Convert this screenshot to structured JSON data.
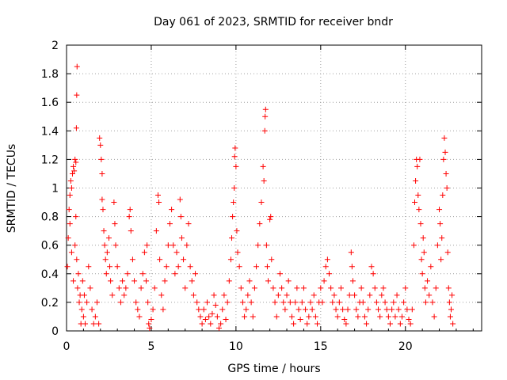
{
  "chart_data": {
    "type": "scatter",
    "title": "Day 061 of 2023, SRMTID for receiver bndr",
    "xlabel": "GPS time / hours",
    "ylabel": "SRMTID / TECUs",
    "xlim": [
      0,
      24.5
    ],
    "ylim": [
      0,
      2
    ],
    "xticks": [
      0,
      5,
      10,
      15,
      20
    ],
    "xtick_labels": [
      "0",
      "5",
      "10",
      "15",
      "20"
    ],
    "yticks": [
      0,
      0.2,
      0.4,
      0.6,
      0.8,
      1,
      1.2,
      1.4,
      1.6,
      1.8,
      2
    ],
    "ytick_labels": [
      "0",
      "0.2",
      "0.4",
      "0.6",
      "0.8",
      "1",
      "1.2",
      "1.4",
      "1.6",
      "1.8",
      "2"
    ],
    "grid": true,
    "marker": "+",
    "color": "#ff0000",
    "series": [
      {
        "name": "SRMTID",
        "points": [
          [
            0.05,
            0.45
          ],
          [
            0.1,
            0.65
          ],
          [
            0.15,
            0.85
          ],
          [
            0.2,
            0.95
          ],
          [
            0.25,
            1.05
          ],
          [
            0.3,
            1.0
          ],
          [
            0.35,
            1.1
          ],
          [
            0.4,
            1.15
          ],
          [
            0.45,
            1.12
          ],
          [
            0.5,
            1.2
          ],
          [
            0.55,
            1.18
          ],
          [
            0.6,
            1.65
          ],
          [
            0.62,
            1.85
          ],
          [
            0.58,
            1.42
          ],
          [
            0.2,
            0.75
          ],
          [
            0.3,
            0.55
          ],
          [
            0.4,
            0.35
          ],
          [
            0.5,
            0.6
          ],
          [
            0.55,
            0.8
          ],
          [
            0.6,
            0.5
          ],
          [
            0.65,
            0.3
          ],
          [
            0.7,
            0.4
          ],
          [
            0.75,
            0.2
          ],
          [
            0.8,
            0.25
          ],
          [
            0.85,
            0.05
          ],
          [
            0.9,
            0.15
          ],
          [
            0.95,
            0.35
          ],
          [
            1.0,
            0.1
          ],
          [
            1.05,
            0.25
          ],
          [
            1.1,
            0.05
          ],
          [
            1.2,
            0.2
          ],
          [
            1.3,
            0.45
          ],
          [
            1.4,
            0.3
          ],
          [
            1.5,
            0.15
          ],
          [
            1.6,
            0.05
          ],
          [
            1.7,
            0.1
          ],
          [
            1.8,
            0.2
          ],
          [
            1.9,
            0.05
          ],
          [
            1.95,
            1.35
          ],
          [
            2.0,
            1.3
          ],
          [
            2.05,
            1.2
          ],
          [
            2.1,
            1.1
          ],
          [
            2.1,
            0.92
          ],
          [
            2.15,
            0.85
          ],
          [
            2.2,
            0.7
          ],
          [
            2.25,
            0.6
          ],
          [
            2.3,
            0.5
          ],
          [
            2.35,
            0.4
          ],
          [
            2.4,
            0.55
          ],
          [
            2.5,
            0.65
          ],
          [
            2.55,
            0.45
          ],
          [
            2.6,
            0.35
          ],
          [
            2.7,
            0.25
          ],
          [
            2.8,
            0.9
          ],
          [
            2.85,
            0.75
          ],
          [
            2.9,
            0.6
          ],
          [
            3.0,
            0.45
          ],
          [
            3.1,
            0.3
          ],
          [
            3.2,
            0.2
          ],
          [
            3.3,
            0.35
          ],
          [
            3.4,
            0.25
          ],
          [
            3.5,
            0.3
          ],
          [
            3.6,
            0.4
          ],
          [
            3.7,
            0.8
          ],
          [
            3.75,
            0.85
          ],
          [
            3.8,
            0.7
          ],
          [
            3.9,
            0.5
          ],
          [
            4.0,
            0.35
          ],
          [
            4.1,
            0.2
          ],
          [
            4.2,
            0.15
          ],
          [
            4.3,
            0.1
          ],
          [
            4.4,
            0.3
          ],
          [
            4.5,
            0.4
          ],
          [
            4.6,
            0.55
          ],
          [
            4.7,
            0.35
          ],
          [
            4.75,
            0.6
          ],
          [
            4.8,
            0.2
          ],
          [
            4.85,
            0.05
          ],
          [
            4.9,
            0.02
          ],
          [
            5.0,
            0.08
          ],
          [
            5.1,
            0.15
          ],
          [
            5.2,
            0.3
          ],
          [
            5.3,
            0.7
          ],
          [
            5.4,
            0.95
          ],
          [
            5.45,
            0.9
          ],
          [
            5.5,
            0.5
          ],
          [
            5.6,
            0.25
          ],
          [
            5.7,
            0.15
          ],
          [
            5.8,
            0.35
          ],
          [
            5.9,
            0.45
          ],
          [
            6.0,
            0.6
          ],
          [
            6.1,
            0.75
          ],
          [
            6.2,
            0.85
          ],
          [
            6.3,
            0.6
          ],
          [
            6.4,
            0.4
          ],
          [
            6.5,
            0.55
          ],
          [
            6.6,
            0.45
          ],
          [
            6.7,
            0.92
          ],
          [
            6.75,
            0.8
          ],
          [
            6.8,
            0.65
          ],
          [
            6.9,
            0.5
          ],
          [
            7.0,
            0.3
          ],
          [
            7.1,
            0.6
          ],
          [
            7.2,
            0.75
          ],
          [
            7.3,
            0.45
          ],
          [
            7.4,
            0.35
          ],
          [
            7.5,
            0.25
          ],
          [
            7.6,
            0.4
          ],
          [
            7.7,
            0.2
          ],
          [
            7.8,
            0.15
          ],
          [
            7.9,
            0.1
          ],
          [
            8.0,
            0.05
          ],
          [
            8.1,
            0.15
          ],
          [
            8.2,
            0.08
          ],
          [
            8.3,
            0.2
          ],
          [
            8.4,
            0.1
          ],
          [
            8.5,
            0.05
          ],
          [
            8.6,
            0.12
          ],
          [
            8.7,
            0.25
          ],
          [
            8.8,
            0.18
          ],
          [
            8.9,
            0.1
          ],
          [
            9.0,
            0.02
          ],
          [
            9.1,
            0.05
          ],
          [
            9.2,
            0.15
          ],
          [
            9.3,
            0.25
          ],
          [
            9.4,
            0.08
          ],
          [
            9.5,
            0.2
          ],
          [
            9.6,
            0.35
          ],
          [
            9.7,
            0.5
          ],
          [
            9.75,
            0.65
          ],
          [
            9.8,
            0.8
          ],
          [
            9.85,
            0.9
          ],
          [
            9.9,
            1.0
          ],
          [
            9.92,
            1.22
          ],
          [
            9.95,
            1.28
          ],
          [
            10.0,
            1.15
          ],
          [
            10.05,
            0.7
          ],
          [
            10.1,
            0.55
          ],
          [
            10.2,
            0.45
          ],
          [
            10.3,
            0.3
          ],
          [
            10.4,
            0.2
          ],
          [
            10.5,
            0.1
          ],
          [
            10.6,
            0.15
          ],
          [
            10.7,
            0.25
          ],
          [
            10.8,
            0.35
          ],
          [
            10.9,
            0.2
          ],
          [
            11.0,
            0.1
          ],
          [
            11.1,
            0.3
          ],
          [
            11.2,
            0.45
          ],
          [
            11.3,
            0.6
          ],
          [
            11.4,
            0.75
          ],
          [
            11.5,
            0.9
          ],
          [
            11.6,
            1.15
          ],
          [
            11.65,
            1.05
          ],
          [
            11.7,
            1.4
          ],
          [
            11.72,
            1.5
          ],
          [
            11.75,
            1.55
          ],
          [
            11.8,
            0.6
          ],
          [
            11.85,
            0.45
          ],
          [
            11.9,
            0.35
          ],
          [
            12.0,
            0.78
          ],
          [
            12.05,
            0.8
          ],
          [
            12.1,
            0.5
          ],
          [
            12.2,
            0.3
          ],
          [
            12.3,
            0.2
          ],
          [
            12.4,
            0.1
          ],
          [
            12.5,
            0.25
          ],
          [
            12.6,
            0.4
          ],
          [
            12.7,
            0.3
          ],
          [
            12.8,
            0.2
          ],
          [
            12.9,
            0.15
          ],
          [
            13.0,
            0.25
          ],
          [
            13.1,
            0.35
          ],
          [
            13.2,
            0.2
          ],
          [
            13.3,
            0.1
          ],
          [
            13.4,
            0.05
          ],
          [
            13.5,
            0.2
          ],
          [
            13.6,
            0.3
          ],
          [
            13.7,
            0.15
          ],
          [
            13.8,
            0.08
          ],
          [
            13.9,
            0.2
          ],
          [
            14.0,
            0.3
          ],
          [
            14.1,
            0.15
          ],
          [
            14.2,
            0.05
          ],
          [
            14.3,
            0.1
          ],
          [
            14.4,
            0.2
          ],
          [
            14.5,
            0.15
          ],
          [
            14.6,
            0.25
          ],
          [
            14.7,
            0.1
          ],
          [
            14.8,
            0.05
          ],
          [
            14.9,
            0.2
          ],
          [
            15.0,
            0.3
          ],
          [
            15.1,
            0.2
          ],
          [
            15.2,
            0.35
          ],
          [
            15.3,
            0.45
          ],
          [
            15.4,
            0.5
          ],
          [
            15.5,
            0.4
          ],
          [
            15.6,
            0.3
          ],
          [
            15.7,
            0.2
          ],
          [
            15.8,
            0.25
          ],
          [
            15.9,
            0.15
          ],
          [
            16.0,
            0.1
          ],
          [
            16.1,
            0.2
          ],
          [
            16.2,
            0.3
          ],
          [
            16.3,
            0.15
          ],
          [
            16.4,
            0.08
          ],
          [
            16.5,
            0.05
          ],
          [
            16.6,
            0.15
          ],
          [
            16.7,
            0.25
          ],
          [
            16.8,
            0.55
          ],
          [
            16.85,
            0.45
          ],
          [
            16.9,
            0.35
          ],
          [
            17.0,
            0.25
          ],
          [
            17.1,
            0.15
          ],
          [
            17.2,
            0.1
          ],
          [
            17.3,
            0.2
          ],
          [
            17.4,
            0.3
          ],
          [
            17.5,
            0.2
          ],
          [
            17.6,
            0.1
          ],
          [
            17.7,
            0.05
          ],
          [
            17.8,
            0.15
          ],
          [
            17.9,
            0.25
          ],
          [
            18.0,
            0.45
          ],
          [
            18.1,
            0.4
          ],
          [
            18.2,
            0.3
          ],
          [
            18.3,
            0.2
          ],
          [
            18.4,
            0.15
          ],
          [
            18.5,
            0.1
          ],
          [
            18.6,
            0.25
          ],
          [
            18.7,
            0.3
          ],
          [
            18.8,
            0.2
          ],
          [
            18.9,
            0.15
          ],
          [
            19.0,
            0.1
          ],
          [
            19.1,
            0.05
          ],
          [
            19.2,
            0.15
          ],
          [
            19.3,
            0.2
          ],
          [
            19.4,
            0.1
          ],
          [
            19.5,
            0.25
          ],
          [
            19.6,
            0.15
          ],
          [
            19.7,
            0.05
          ],
          [
            19.8,
            0.1
          ],
          [
            19.9,
            0.2
          ],
          [
            20.0,
            0.3
          ],
          [
            20.1,
            0.15
          ],
          [
            20.2,
            0.08
          ],
          [
            20.3,
            0.05
          ],
          [
            20.4,
            0.15
          ],
          [
            20.5,
            0.6
          ],
          [
            20.55,
            0.9
          ],
          [
            20.6,
            1.05
          ],
          [
            20.65,
            1.2
          ],
          [
            20.7,
            1.15
          ],
          [
            20.75,
            0.95
          ],
          [
            20.8,
            0.85
          ],
          [
            20.85,
            1.2
          ],
          [
            20.9,
            0.75
          ],
          [
            20.95,
            0.5
          ],
          [
            21.0,
            0.4
          ],
          [
            21.05,
            0.65
          ],
          [
            21.1,
            0.55
          ],
          [
            21.15,
            0.3
          ],
          [
            21.2,
            0.2
          ],
          [
            21.3,
            0.35
          ],
          [
            21.4,
            0.25
          ],
          [
            21.5,
            0.45
          ],
          [
            21.6,
            0.2
          ],
          [
            21.7,
            0.1
          ],
          [
            21.8,
            0.3
          ],
          [
            21.9,
            0.6
          ],
          [
            22.0,
            0.85
          ],
          [
            22.05,
            0.75
          ],
          [
            22.1,
            0.5
          ],
          [
            22.15,
            0.65
          ],
          [
            22.2,
            0.95
          ],
          [
            22.25,
            1.2
          ],
          [
            22.3,
            1.35
          ],
          [
            22.35,
            1.25
          ],
          [
            22.4,
            1.1
          ],
          [
            22.45,
            1.0
          ],
          [
            22.5,
            0.55
          ],
          [
            22.55,
            0.3
          ],
          [
            22.6,
            0.2
          ],
          [
            22.65,
            0.1
          ],
          [
            22.7,
            0.15
          ],
          [
            22.75,
            0.25
          ],
          [
            22.8,
            0.05
          ]
        ]
      }
    ]
  }
}
